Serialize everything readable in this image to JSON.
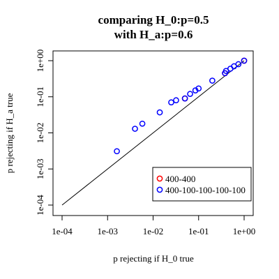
{
  "chart_data": {
    "type": "scatter",
    "title_lines": [
      "comparing H_0:p=0.5",
      "with H_a:p=0.6"
    ],
    "xlabel": "p rejecting if H_0 true",
    "ylabel": "p rejecting if H_a true",
    "x_scale": "log10",
    "y_scale": "log10",
    "xlim": [
      0.0001,
      1
    ],
    "ylim": [
      0.0001,
      1
    ],
    "x_ticks": [
      "1e-04",
      "1e-03",
      "1e-02",
      "1e-01",
      "1e+00"
    ],
    "y_ticks": [
      "1e-04",
      "1e-03",
      "1e-02",
      "1e-01",
      "1e+00"
    ],
    "reference_line": "y = x",
    "legend_position": "bottom-right",
    "series": [
      {
        "name": "400-400",
        "color": "#ff0000",
        "points": [
          {
            "x": 0.05,
            "y": 0.09
          },
          {
            "x": 0.38,
            "y": 0.45
          },
          {
            "x": 1.0,
            "y": 1.0
          }
        ]
      },
      {
        "name": "400-100-100-100-100",
        "color": "#0000ff",
        "points": [
          {
            "x": 0.0016,
            "y": 0.0031
          },
          {
            "x": 0.004,
            "y": 0.013
          },
          {
            "x": 0.0058,
            "y": 0.018
          },
          {
            "x": 0.014,
            "y": 0.037
          },
          {
            "x": 0.025,
            "y": 0.07
          },
          {
            "x": 0.032,
            "y": 0.08
          },
          {
            "x": 0.05,
            "y": 0.09
          },
          {
            "x": 0.065,
            "y": 0.12
          },
          {
            "x": 0.085,
            "y": 0.15
          },
          {
            "x": 0.1,
            "y": 0.17
          },
          {
            "x": 0.2,
            "y": 0.28
          },
          {
            "x": 0.38,
            "y": 0.45
          },
          {
            "x": 0.4,
            "y": 0.52
          },
          {
            "x": 0.5,
            "y": 0.6
          },
          {
            "x": 0.6,
            "y": 0.7
          },
          {
            "x": 0.75,
            "y": 0.8
          },
          {
            "x": 1.0,
            "y": 1.0
          }
        ]
      }
    ]
  }
}
